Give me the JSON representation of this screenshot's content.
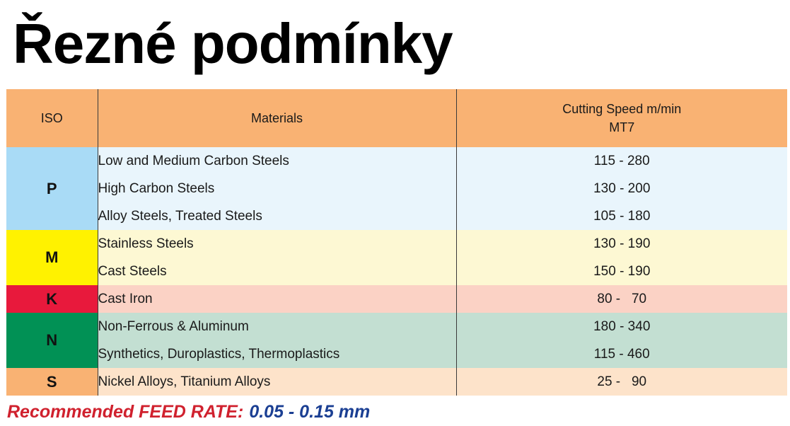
{
  "title": "Řezné podmínky",
  "table": {
    "headers": {
      "iso": "ISO",
      "materials": "Materials",
      "speed_line1": "Cutting Speed m/min",
      "speed_line2": "MT7"
    },
    "groups": [
      {
        "iso": "P",
        "color": "#a9dbf6",
        "row_color": "#e9f5fc",
        "rows": [
          {
            "material": "Low and Medium Carbon Steels",
            "speed": "115 - 280"
          },
          {
            "material": "High Carbon Steels",
            "speed": "130 - 200"
          },
          {
            "material": "Alloy Steels, Treated Steels",
            "speed": "105 - 180"
          }
        ]
      },
      {
        "iso": "M",
        "color": "#fff200",
        "row_color": "#fdf8d3",
        "rows": [
          {
            "material": "Stainless Steels",
            "speed": "130 - 190"
          },
          {
            "material": "Cast Steels",
            "speed": "150 - 190"
          }
        ]
      },
      {
        "iso": "K",
        "color": "#e8193c",
        "row_color": "#fbd2c5",
        "rows": [
          {
            "material": "Cast Iron",
            "speed": "80 -   70"
          }
        ]
      },
      {
        "iso": "N",
        "color": "#019155",
        "row_color": "#c3dfd2",
        "rows": [
          {
            "material": "Non-Ferrous & Aluminum",
            "speed": "180 - 340"
          },
          {
            "material": "Synthetics, Duroplastics, Thermoplastics",
            "speed": "115 - 460"
          }
        ]
      },
      {
        "iso": "S",
        "color": "#f9b273",
        "row_color": "#fde3ca",
        "rows": [
          {
            "material": "Nickel Alloys, Titanium Alloys",
            "speed": "25 -   90"
          }
        ]
      }
    ]
  },
  "footer": {
    "label": "Recommended FEED RATE:",
    "value": "0.05 - 0.15 mm",
    "label_color": "#d0212e",
    "value_color": "#1b3f93"
  }
}
